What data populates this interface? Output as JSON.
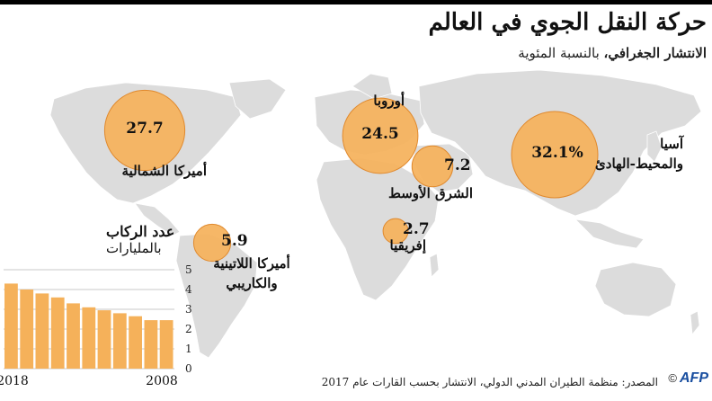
{
  "title": "حركة النقل الجوي في العالم",
  "subtitle_bold": "الانتشار الجغرافي،",
  "subtitle_rest": " بالنسبة المئوية",
  "colors": {
    "land": "#dcdcdc",
    "bubble": "#f5b15a",
    "bubble_stroke": "#e0892d",
    "bar": "#f5b15a",
    "grid": "#c9c9c9",
    "logo": "#1a4fa0"
  },
  "chart_data": [
    {
      "type": "bubble-map",
      "regions": [
        {
          "key": "north_america",
          "name": "أميركا الشمالية",
          "value": 27.7,
          "value_label": "27.7"
        },
        {
          "key": "europe",
          "name": "أوروبا",
          "value": 24.5,
          "value_label": "24.5"
        },
        {
          "key": "asia_pacific",
          "name_line1": "آسيا",
          "name_line2": "والمحيط-الهادئ",
          "value": 32.1,
          "value_label": "32.1%"
        },
        {
          "key": "middle_east",
          "name": "الشرق الأوسط",
          "value": 7.2,
          "value_label": "7.2"
        },
        {
          "key": "africa",
          "name": "إفريقيا",
          "value": 2.7,
          "value_label": "2.7"
        },
        {
          "key": "latin_america",
          "name_line1": "أميركا اللاتينية",
          "name_line2": "والكاريبي",
          "value": 5.9,
          "value_label": "5.9"
        }
      ]
    },
    {
      "type": "bar",
      "title": "عدد الركاب",
      "unit": "بالمليارات",
      "x": [
        2018,
        2017,
        2016,
        2015,
        2014,
        2013,
        2012,
        2011,
        2010,
        2009,
        2008
      ],
      "values": [
        4.3,
        4.0,
        3.8,
        3.6,
        3.3,
        3.1,
        2.95,
        2.8,
        2.65,
        2.45,
        2.45
      ],
      "x_tick_labels": [
        "2018",
        "2008"
      ],
      "ylim": [
        0,
        5
      ],
      "y_ticks": [
        "0",
        "1",
        "2",
        "3",
        "4",
        "5"
      ],
      "grid": true
    }
  ],
  "footer": {
    "source": "المصدر: منظمة الطيران المدني الدولي، الانتشار بحسب القارات عام 2017",
    "copyright": "©",
    "logo": "AFP"
  }
}
